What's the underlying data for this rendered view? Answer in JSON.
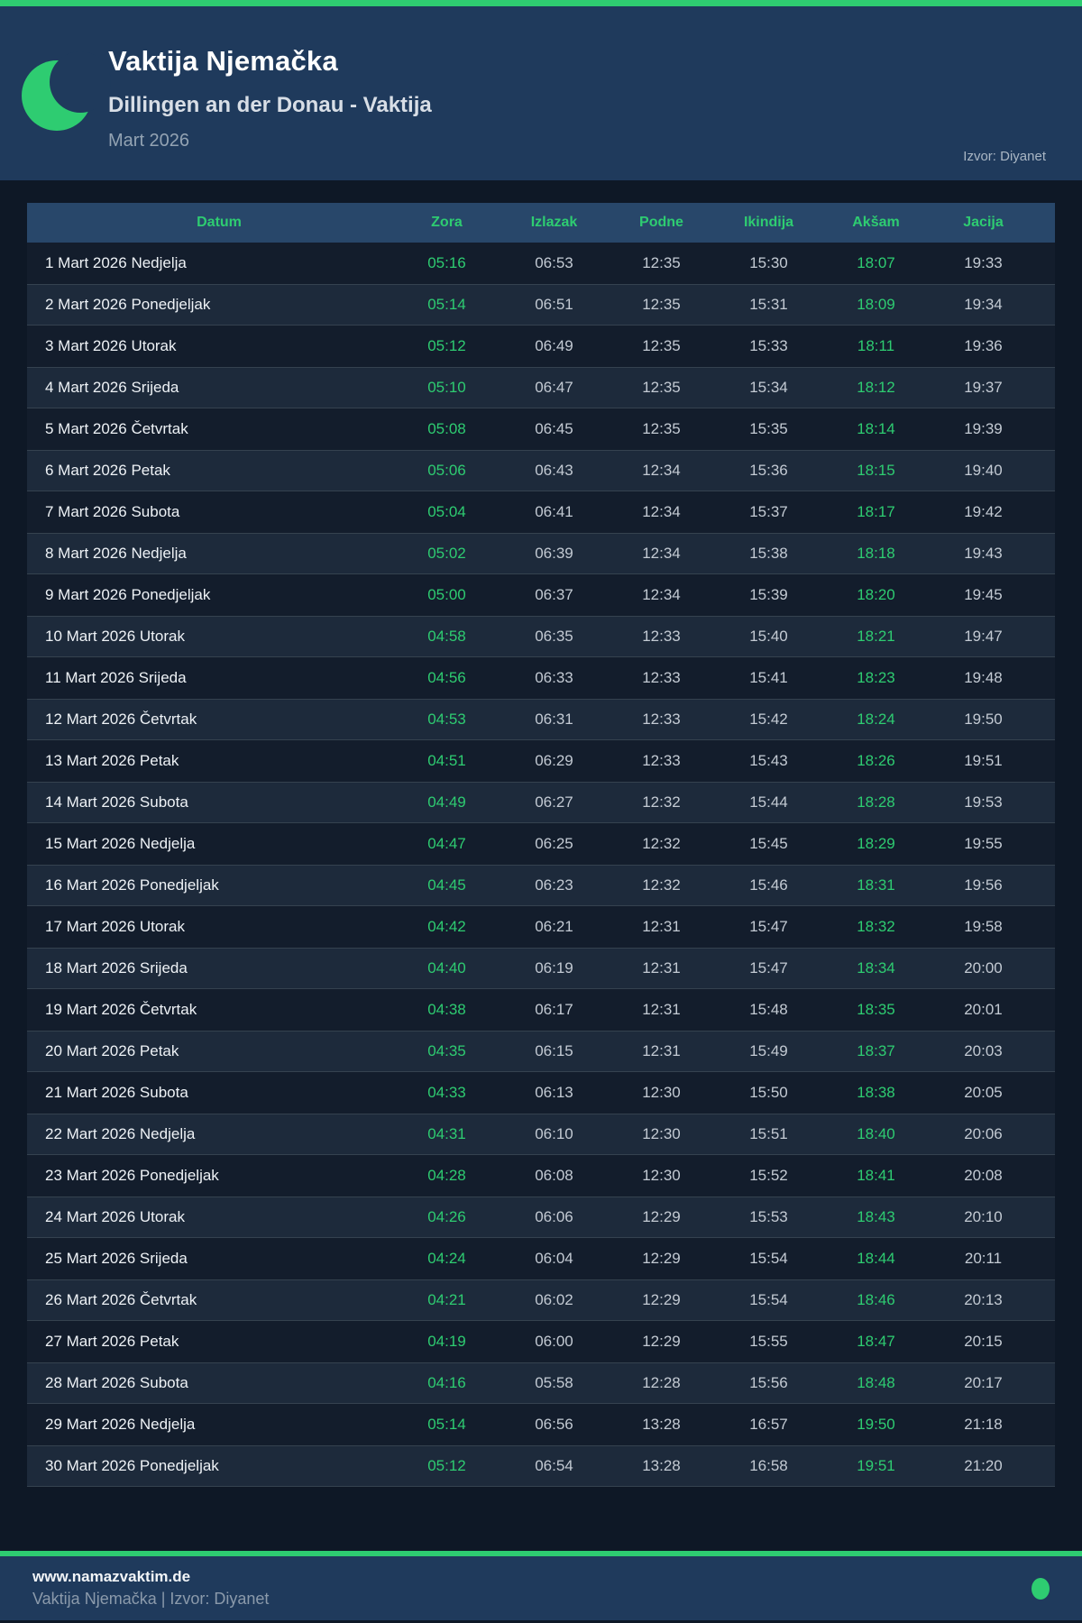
{
  "colors": {
    "accent": "#2ecc71",
    "band": "#1f3a5c",
    "thead": "#28476a"
  },
  "header": {
    "title": "Vaktija Njemačka",
    "subtitle": "Dillingen an der Donau - Vaktija",
    "month": "Mart 2026",
    "source": "Izvor: Diyanet"
  },
  "table": {
    "columns": [
      "Datum",
      "Zora",
      "Izlazak",
      "Podne",
      "Ikindija",
      "Akšam",
      "Jacija"
    ],
    "rows": [
      [
        "1 Mart 2026 Nedjelja",
        "05:16",
        "06:53",
        "12:35",
        "15:30",
        "18:07",
        "19:33"
      ],
      [
        "2 Mart 2026 Ponedjeljak",
        "05:14",
        "06:51",
        "12:35",
        "15:31",
        "18:09",
        "19:34"
      ],
      [
        "3 Mart 2026 Utorak",
        "05:12",
        "06:49",
        "12:35",
        "15:33",
        "18:11",
        "19:36"
      ],
      [
        "4 Mart 2026 Srijeda",
        "05:10",
        "06:47",
        "12:35",
        "15:34",
        "18:12",
        "19:37"
      ],
      [
        "5 Mart 2026 Četvrtak",
        "05:08",
        "06:45",
        "12:35",
        "15:35",
        "18:14",
        "19:39"
      ],
      [
        "6 Mart 2026 Petak",
        "05:06",
        "06:43",
        "12:34",
        "15:36",
        "18:15",
        "19:40"
      ],
      [
        "7 Mart 2026 Subota",
        "05:04",
        "06:41",
        "12:34",
        "15:37",
        "18:17",
        "19:42"
      ],
      [
        "8 Mart 2026 Nedjelja",
        "05:02",
        "06:39",
        "12:34",
        "15:38",
        "18:18",
        "19:43"
      ],
      [
        "9 Mart 2026 Ponedjeljak",
        "05:00",
        "06:37",
        "12:34",
        "15:39",
        "18:20",
        "19:45"
      ],
      [
        "10 Mart 2026 Utorak",
        "04:58",
        "06:35",
        "12:33",
        "15:40",
        "18:21",
        "19:47"
      ],
      [
        "11 Mart 2026 Srijeda",
        "04:56",
        "06:33",
        "12:33",
        "15:41",
        "18:23",
        "19:48"
      ],
      [
        "12 Mart 2026 Četvrtak",
        "04:53",
        "06:31",
        "12:33",
        "15:42",
        "18:24",
        "19:50"
      ],
      [
        "13 Mart 2026 Petak",
        "04:51",
        "06:29",
        "12:33",
        "15:43",
        "18:26",
        "19:51"
      ],
      [
        "14 Mart 2026 Subota",
        "04:49",
        "06:27",
        "12:32",
        "15:44",
        "18:28",
        "19:53"
      ],
      [
        "15 Mart 2026 Nedjelja",
        "04:47",
        "06:25",
        "12:32",
        "15:45",
        "18:29",
        "19:55"
      ],
      [
        "16 Mart 2026 Ponedjeljak",
        "04:45",
        "06:23",
        "12:32",
        "15:46",
        "18:31",
        "19:56"
      ],
      [
        "17 Mart 2026 Utorak",
        "04:42",
        "06:21",
        "12:31",
        "15:47",
        "18:32",
        "19:58"
      ],
      [
        "18 Mart 2026 Srijeda",
        "04:40",
        "06:19",
        "12:31",
        "15:47",
        "18:34",
        "20:00"
      ],
      [
        "19 Mart 2026 Četvrtak",
        "04:38",
        "06:17",
        "12:31",
        "15:48",
        "18:35",
        "20:01"
      ],
      [
        "20 Mart 2026 Petak",
        "04:35",
        "06:15",
        "12:31",
        "15:49",
        "18:37",
        "20:03"
      ],
      [
        "21 Mart 2026 Subota",
        "04:33",
        "06:13",
        "12:30",
        "15:50",
        "18:38",
        "20:05"
      ],
      [
        "22 Mart 2026 Nedjelja",
        "04:31",
        "06:10",
        "12:30",
        "15:51",
        "18:40",
        "20:06"
      ],
      [
        "23 Mart 2026 Ponedjeljak",
        "04:28",
        "06:08",
        "12:30",
        "15:52",
        "18:41",
        "20:08"
      ],
      [
        "24 Mart 2026 Utorak",
        "04:26",
        "06:06",
        "12:29",
        "15:53",
        "18:43",
        "20:10"
      ],
      [
        "25 Mart 2026 Srijeda",
        "04:24",
        "06:04",
        "12:29",
        "15:54",
        "18:44",
        "20:11"
      ],
      [
        "26 Mart 2026 Četvrtak",
        "04:21",
        "06:02",
        "12:29",
        "15:54",
        "18:46",
        "20:13"
      ],
      [
        "27 Mart 2026 Petak",
        "04:19",
        "06:00",
        "12:29",
        "15:55",
        "18:47",
        "20:15"
      ],
      [
        "28 Mart 2026 Subota",
        "04:16",
        "05:58",
        "12:28",
        "15:56",
        "18:48",
        "20:17"
      ],
      [
        "29 Mart 2026 Nedjelja",
        "05:14",
        "06:56",
        "13:28",
        "16:57",
        "19:50",
        "21:18"
      ],
      [
        "30 Mart 2026 Ponedjeljak",
        "05:12",
        "06:54",
        "13:28",
        "16:58",
        "19:51",
        "21:20"
      ]
    ]
  },
  "footer": {
    "website": "www.namazvaktim.de",
    "tagline": "Vaktija Njemačka | Izvor: Diyanet"
  }
}
